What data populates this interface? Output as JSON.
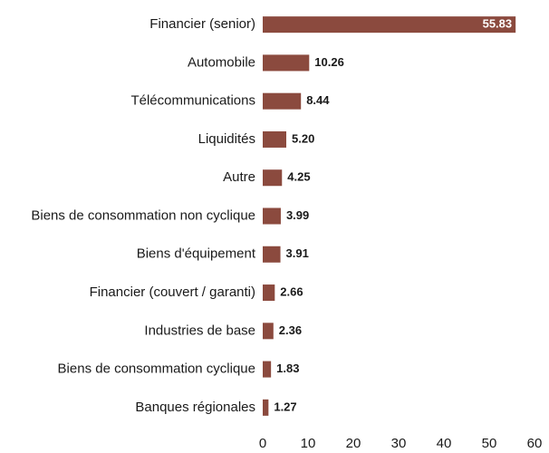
{
  "chart_data": {
    "type": "bar",
    "orientation": "horizontal",
    "categories": [
      "Financier (senior)",
      "Automobile",
      "Télécommunications",
      "Liquidités",
      "Autre",
      "Biens de consommation non cyclique",
      "Biens d'équipement",
      "Financier (couvert / garanti)",
      "Industries de base",
      "Biens de consommation cyclique",
      "Banques régionales"
    ],
    "values": [
      55.83,
      10.26,
      8.44,
      5.2,
      4.25,
      3.99,
      3.91,
      2.66,
      2.36,
      1.83,
      1.27
    ],
    "value_labels": [
      "55.83",
      "10.26",
      "8.44",
      "5.20",
      "4.25",
      "3.99",
      "3.91",
      "2.66",
      "2.36",
      "1.83",
      "1.27"
    ],
    "color": "#8b4a3e",
    "xlim": [
      0,
      60
    ],
    "xticks": [
      0,
      10,
      20,
      30,
      40,
      50,
      60
    ],
    "grid": false
  }
}
